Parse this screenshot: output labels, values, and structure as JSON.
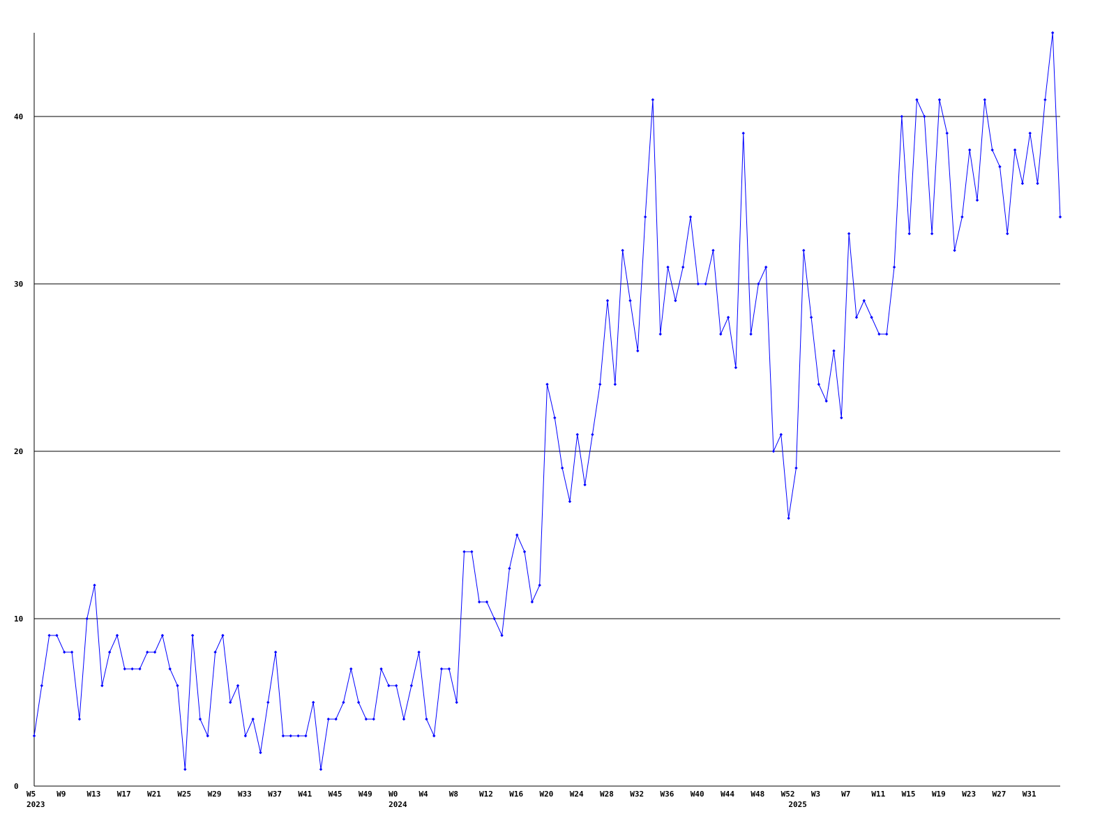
{
  "chart_data": {
    "type": "line",
    "categories": [
      "W5",
      null,
      null,
      null,
      "W9",
      null,
      null,
      null,
      "W13",
      null,
      null,
      null,
      "W17",
      null,
      null,
      null,
      "W21",
      null,
      null,
      null,
      "W25",
      null,
      null,
      null,
      "W29",
      null,
      null,
      null,
      "W33",
      null,
      null,
      null,
      "W37",
      null,
      null,
      null,
      "W41",
      null,
      null,
      null,
      "W45",
      null,
      null,
      null,
      "W49",
      null,
      null,
      null,
      "W0",
      null,
      null,
      null,
      "W4",
      null,
      null,
      null,
      "W8",
      null,
      null,
      null,
      "W12",
      null,
      null,
      null,
      "W16",
      null,
      null,
      null,
      "W20",
      null,
      null,
      null,
      "W24",
      null,
      null,
      null,
      "W28",
      null,
      null,
      null,
      "W32",
      null,
      null,
      null,
      "W36",
      null,
      null,
      null,
      "W40",
      null,
      null,
      null,
      "W44",
      null,
      null,
      null,
      "W48",
      null,
      null,
      null,
      "W52",
      null,
      null,
      null,
      "W3",
      null,
      null,
      null,
      "W7",
      null,
      null,
      null,
      "W11",
      null,
      null,
      null,
      "W15",
      null,
      null,
      null,
      "W19",
      null,
      null,
      null,
      "W23",
      null,
      null,
      null,
      "W27",
      null,
      null,
      null,
      "W31",
      null,
      null,
      null,
      null
    ],
    "years": [
      "2023",
      "2024",
      "2025"
    ],
    "series": [
      {
        "color": "#0000ff",
        "values": [
          3,
          6,
          9,
          9,
          8,
          8,
          4,
          10,
          12,
          6,
          8,
          9,
          7,
          7,
          7,
          8,
          8,
          9,
          7,
          6,
          1,
          9,
          4,
          3,
          8,
          9,
          5,
          6,
          3,
          4,
          2,
          5,
          8,
          3,
          3,
          3,
          3,
          5,
          1,
          4,
          4,
          5,
          7,
          5,
          4,
          4,
          7,
          6,
          6,
          4,
          6,
          8,
          4,
          3,
          7,
          7,
          5,
          14,
          14,
          11,
          11,
          10,
          9,
          13,
          15,
          14,
          11,
          12,
          24,
          22,
          19,
          17,
          21,
          18,
          21,
          24,
          29,
          24,
          32,
          29,
          26,
          34,
          41,
          27,
          31,
          29,
          31,
          34,
          30,
          30,
          32,
          27,
          28,
          25,
          39,
          27,
          30,
          31,
          20,
          21,
          16,
          19,
          32,
          28,
          24,
          23,
          26,
          22,
          33,
          28,
          29,
          28,
          27,
          27,
          31,
          40,
          33,
          41,
          40,
          33,
          41,
          39,
          32,
          34,
          38,
          35,
          41,
          38,
          37,
          33,
          38,
          36,
          39,
          36,
          41,
          45,
          34
        ]
      }
    ],
    "ylim": [
      0,
      45
    ],
    "yticks": [
      0,
      10,
      20,
      30,
      40
    ],
    "grid": true
  }
}
